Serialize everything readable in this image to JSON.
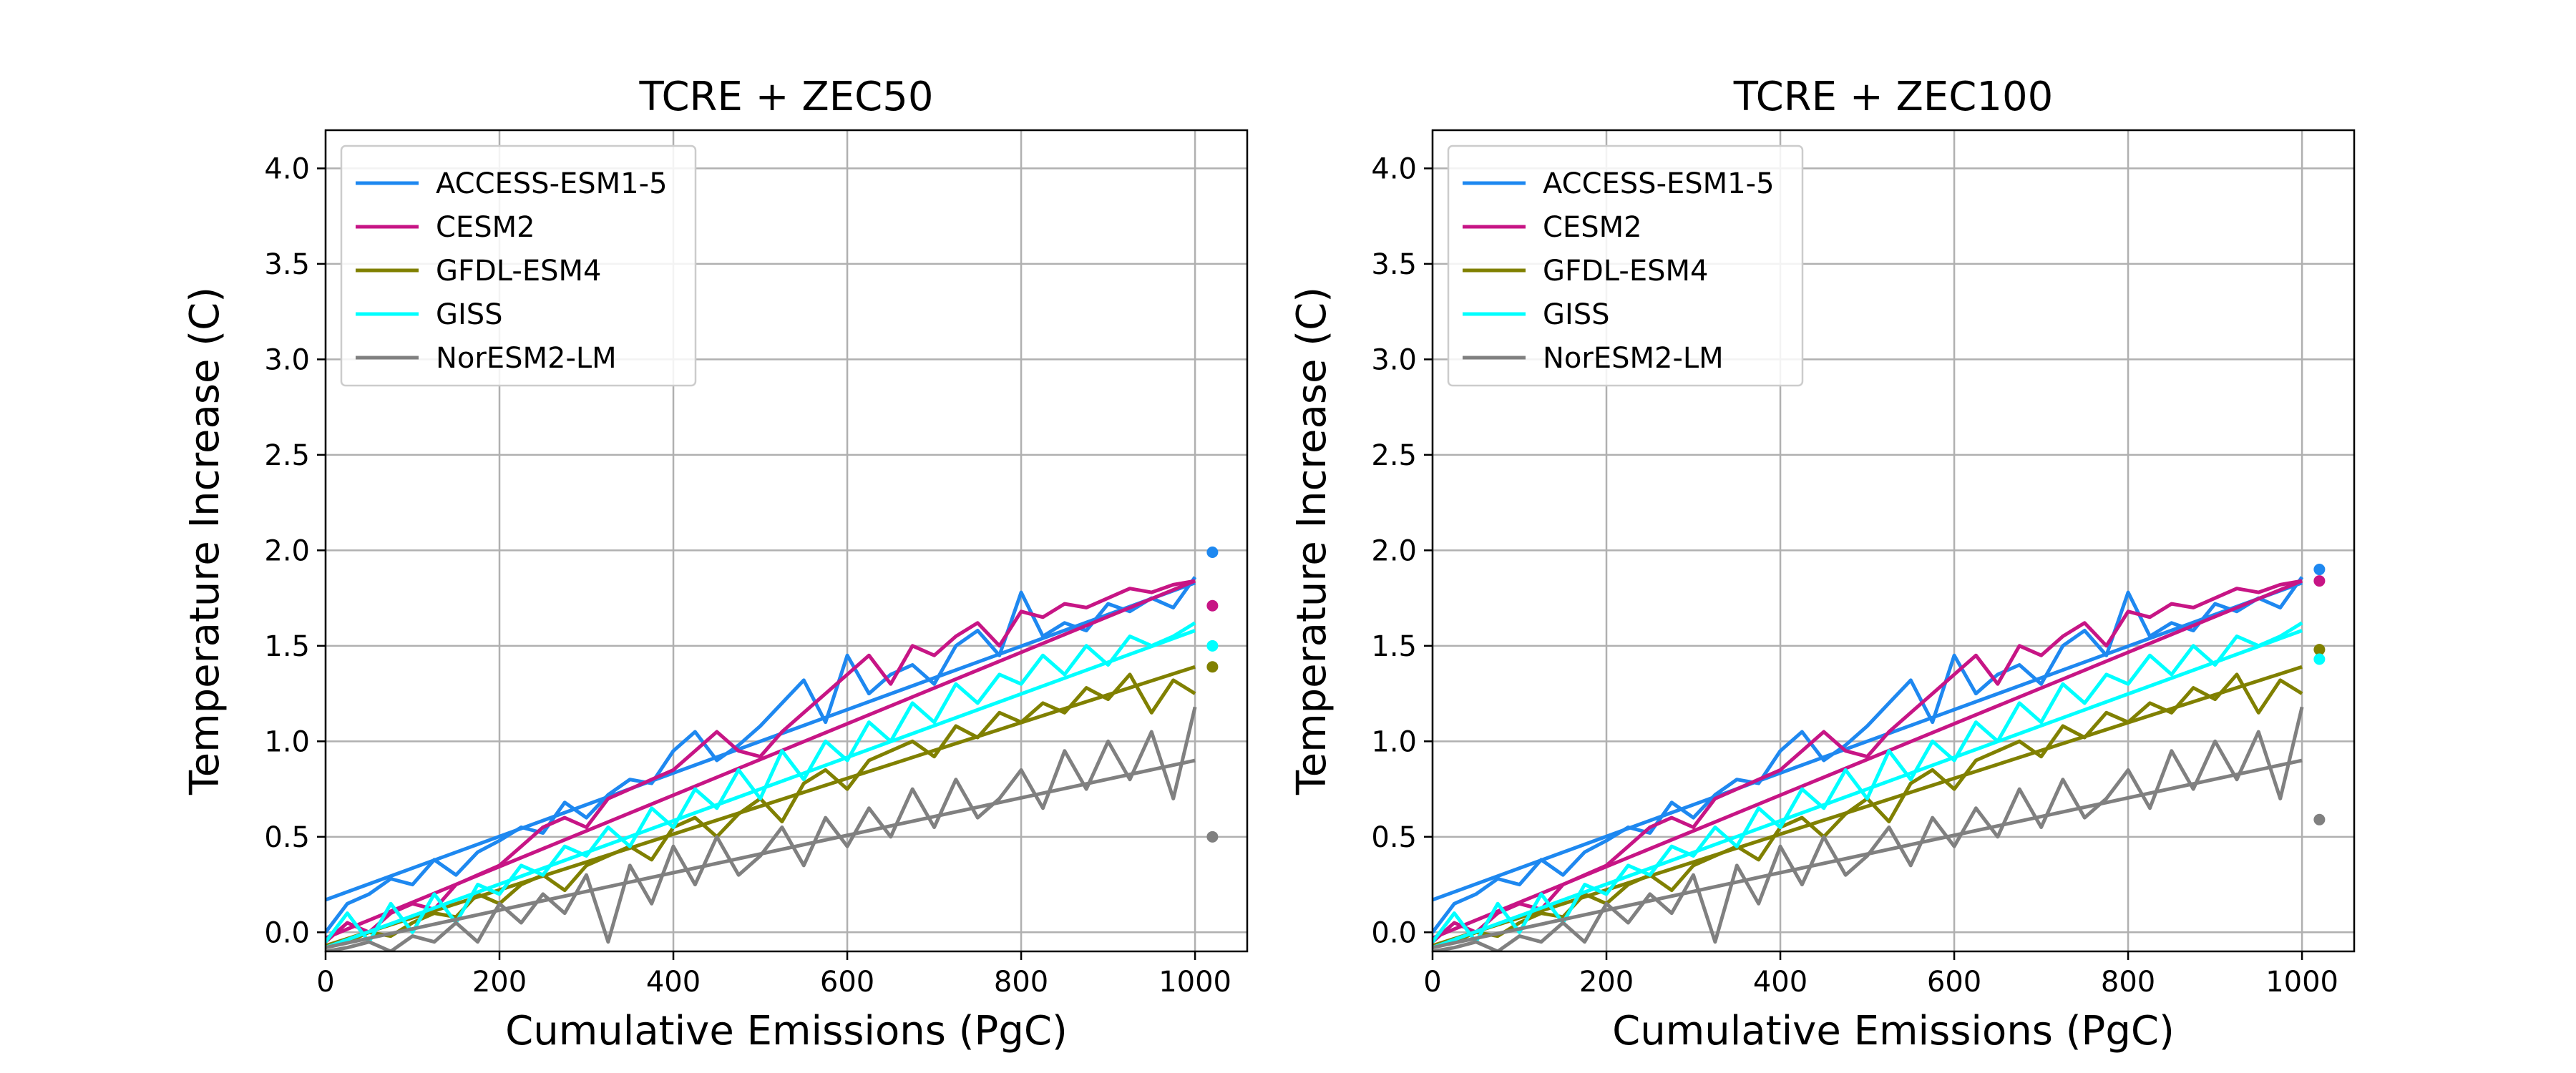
{
  "chart_data": [
    {
      "type": "line",
      "title": "TCRE + ZEC50",
      "xlabel": "Cumulative Emissions (PgC)",
      "ylabel": "Temperature Increase (C)",
      "xlim": [
        0,
        1060
      ],
      "ylim": [
        -0.1,
        4.2
      ],
      "xticks": [
        "0",
        "200",
        "400",
        "600",
        "800",
        "1000"
      ],
      "yticks": [
        "0.0",
        "0.5",
        "1.0",
        "1.5",
        "2.0",
        "2.5",
        "3.0",
        "3.5",
        "4.0"
      ],
      "grid": true,
      "legend": "top-left",
      "series": [
        {
          "name": "ACCESS-ESM1-5",
          "color": "#1e88f0",
          "fit_x": [
            0,
            1000
          ],
          "fit_y": [
            0.17,
            1.83
          ],
          "zec_x": 1020,
          "zec_y": 1.99,
          "x": [
            0,
            25,
            50,
            75,
            100,
            125,
            150,
            175,
            200,
            225,
            250,
            275,
            300,
            325,
            350,
            375,
            400,
            425,
            450,
            475,
            500,
            525,
            550,
            575,
            600,
            625,
            650,
            675,
            700,
            725,
            750,
            775,
            800,
            825,
            850,
            875,
            900,
            925,
            950,
            975,
            1000
          ],
          "y": [
            0.0,
            0.15,
            0.2,
            0.28,
            0.25,
            0.38,
            0.3,
            0.42,
            0.48,
            0.55,
            0.52,
            0.68,
            0.6,
            0.72,
            0.8,
            0.78,
            0.95,
            1.05,
            0.9,
            0.98,
            1.08,
            1.2,
            1.32,
            1.1,
            1.45,
            1.25,
            1.35,
            1.4,
            1.3,
            1.5,
            1.58,
            1.45,
            1.78,
            1.55,
            1.62,
            1.58,
            1.72,
            1.68,
            1.75,
            1.7,
            1.86
          ]
        },
        {
          "name": "CESM2",
          "color": "#c71585",
          "fit_x": [
            0,
            1000
          ],
          "fit_y": [
            -0.03,
            1.84
          ],
          "zec_x": 1020,
          "zec_y": 1.71,
          "x": [
            0,
            25,
            50,
            75,
            100,
            125,
            150,
            175,
            200,
            225,
            250,
            275,
            300,
            325,
            350,
            375,
            400,
            425,
            450,
            475,
            500,
            525,
            550,
            575,
            600,
            625,
            650,
            675,
            700,
            725,
            750,
            775,
            800,
            825,
            850,
            875,
            900,
            925,
            950,
            975,
            1000
          ],
          "y": [
            -0.05,
            0.05,
            0.0,
            0.1,
            0.15,
            0.12,
            0.25,
            0.3,
            0.35,
            0.45,
            0.55,
            0.6,
            0.55,
            0.7,
            0.75,
            0.8,
            0.85,
            0.95,
            1.05,
            0.95,
            0.92,
            1.05,
            1.15,
            1.25,
            1.35,
            1.45,
            1.3,
            1.5,
            1.45,
            1.55,
            1.62,
            1.5,
            1.68,
            1.65,
            1.72,
            1.7,
            1.75,
            1.8,
            1.78,
            1.82,
            1.84
          ]
        },
        {
          "name": "GFDL-ESM4",
          "color": "#808000",
          "fit_x": [
            0,
            1000
          ],
          "fit_y": [
            -0.07,
            1.39
          ],
          "zec_x": 1020,
          "zec_y": 1.39,
          "x": [
            0,
            25,
            50,
            75,
            100,
            125,
            150,
            175,
            200,
            225,
            250,
            275,
            300,
            325,
            350,
            375,
            400,
            425,
            450,
            475,
            500,
            525,
            550,
            575,
            600,
            625,
            650,
            675,
            700,
            725,
            750,
            775,
            800,
            825,
            850,
            875,
            900,
            925,
            950,
            975,
            1000
          ],
          "y": [
            -0.08,
            -0.05,
            0.0,
            -0.02,
            0.05,
            0.1,
            0.08,
            0.2,
            0.15,
            0.25,
            0.3,
            0.22,
            0.35,
            0.4,
            0.45,
            0.38,
            0.55,
            0.6,
            0.5,
            0.62,
            0.7,
            0.58,
            0.78,
            0.85,
            0.75,
            0.9,
            0.95,
            1.0,
            0.92,
            1.08,
            1.02,
            1.15,
            1.1,
            1.2,
            1.15,
            1.28,
            1.22,
            1.35,
            1.15,
            1.32,
            1.25
          ]
        },
        {
          "name": "GISS",
          "color": "#00ffff",
          "fit_x": [
            0,
            1000
          ],
          "fit_y": [
            -0.08,
            1.58
          ],
          "zec_x": 1020,
          "zec_y": 1.5,
          "x": [
            0,
            25,
            50,
            75,
            100,
            125,
            150,
            175,
            200,
            225,
            250,
            275,
            300,
            325,
            350,
            375,
            400,
            425,
            450,
            475,
            500,
            525,
            550,
            575,
            600,
            625,
            650,
            675,
            700,
            725,
            750,
            775,
            800,
            825,
            850,
            875,
            900,
            925,
            950,
            975,
            1000
          ],
          "y": [
            -0.05,
            0.1,
            -0.05,
            0.15,
            0.0,
            0.2,
            0.05,
            0.25,
            0.2,
            0.35,
            0.3,
            0.45,
            0.4,
            0.55,
            0.45,
            0.65,
            0.55,
            0.75,
            0.65,
            0.85,
            0.7,
            0.95,
            0.8,
            1.0,
            0.9,
            1.1,
            1.0,
            1.2,
            1.1,
            1.3,
            1.2,
            1.35,
            1.3,
            1.45,
            1.35,
            1.5,
            1.4,
            1.55,
            1.5,
            1.55,
            1.62
          ]
        },
        {
          "name": "NorESM2-LM",
          "color": "#808080",
          "fit_x": [
            0,
            1000
          ],
          "fit_y": [
            -0.08,
            0.9
          ],
          "zec_x": 1020,
          "zec_y": 0.5,
          "x": [
            0,
            25,
            50,
            75,
            100,
            125,
            150,
            175,
            200,
            225,
            250,
            275,
            300,
            325,
            350,
            375,
            400,
            425,
            450,
            475,
            500,
            525,
            550,
            575,
            600,
            625,
            650,
            675,
            700,
            725,
            750,
            775,
            800,
            825,
            850,
            875,
            900,
            925,
            950,
            975,
            1000
          ],
          "y": [
            -0.1,
            -0.08,
            -0.05,
            -0.1,
            -0.02,
            -0.05,
            0.05,
            -0.05,
            0.15,
            0.05,
            0.2,
            0.1,
            0.3,
            -0.05,
            0.35,
            0.15,
            0.45,
            0.25,
            0.5,
            0.3,
            0.4,
            0.55,
            0.35,
            0.6,
            0.45,
            0.65,
            0.5,
            0.75,
            0.55,
            0.8,
            0.6,
            0.7,
            0.85,
            0.65,
            0.95,
            0.75,
            1.0,
            0.8,
            1.05,
            0.7,
            1.18
          ]
        }
      ]
    },
    {
      "type": "line",
      "title": "TCRE + ZEC100",
      "xlabel": "Cumulative Emissions (PgC)",
      "ylabel": "Temperature Increase (C)",
      "xlim": [
        0,
        1060
      ],
      "ylim": [
        -0.1,
        4.2
      ],
      "xticks": [
        "0",
        "200",
        "400",
        "600",
        "800",
        "1000"
      ],
      "yticks": [
        "0.0",
        "0.5",
        "1.0",
        "1.5",
        "2.0",
        "2.5",
        "3.0",
        "3.5",
        "4.0"
      ],
      "grid": true,
      "legend": "top-left",
      "series": [
        {
          "name": "ACCESS-ESM1-5",
          "color": "#1e88f0",
          "fit_x": [
            0,
            1000
          ],
          "fit_y": [
            0.17,
            1.83
          ],
          "zec_x": 1020,
          "zec_y": 1.9,
          "x": [
            0,
            25,
            50,
            75,
            100,
            125,
            150,
            175,
            200,
            225,
            250,
            275,
            300,
            325,
            350,
            375,
            400,
            425,
            450,
            475,
            500,
            525,
            550,
            575,
            600,
            625,
            650,
            675,
            700,
            725,
            750,
            775,
            800,
            825,
            850,
            875,
            900,
            925,
            950,
            975,
            1000
          ],
          "y": [
            0.0,
            0.15,
            0.2,
            0.28,
            0.25,
            0.38,
            0.3,
            0.42,
            0.48,
            0.55,
            0.52,
            0.68,
            0.6,
            0.72,
            0.8,
            0.78,
            0.95,
            1.05,
            0.9,
            0.98,
            1.08,
            1.2,
            1.32,
            1.1,
            1.45,
            1.25,
            1.35,
            1.4,
            1.3,
            1.5,
            1.58,
            1.45,
            1.78,
            1.55,
            1.62,
            1.58,
            1.72,
            1.68,
            1.75,
            1.7,
            1.86
          ]
        },
        {
          "name": "CESM2",
          "color": "#c71585",
          "fit_x": [
            0,
            1000
          ],
          "fit_y": [
            -0.03,
            1.84
          ],
          "zec_x": 1020,
          "zec_y": 1.84,
          "x": [
            0,
            25,
            50,
            75,
            100,
            125,
            150,
            175,
            200,
            225,
            250,
            275,
            300,
            325,
            350,
            375,
            400,
            425,
            450,
            475,
            500,
            525,
            550,
            575,
            600,
            625,
            650,
            675,
            700,
            725,
            750,
            775,
            800,
            825,
            850,
            875,
            900,
            925,
            950,
            975,
            1000
          ],
          "y": [
            -0.05,
            0.05,
            0.0,
            0.1,
            0.15,
            0.12,
            0.25,
            0.3,
            0.35,
            0.45,
            0.55,
            0.6,
            0.55,
            0.7,
            0.75,
            0.8,
            0.85,
            0.95,
            1.05,
            0.95,
            0.92,
            1.05,
            1.15,
            1.25,
            1.35,
            1.45,
            1.3,
            1.5,
            1.45,
            1.55,
            1.62,
            1.5,
            1.68,
            1.65,
            1.72,
            1.7,
            1.75,
            1.8,
            1.78,
            1.82,
            1.84
          ]
        },
        {
          "name": "GFDL-ESM4",
          "color": "#808000",
          "fit_x": [
            0,
            1000
          ],
          "fit_y": [
            -0.07,
            1.39
          ],
          "zec_x": 1020,
          "zec_y": 1.48,
          "x": [
            0,
            25,
            50,
            75,
            100,
            125,
            150,
            175,
            200,
            225,
            250,
            275,
            300,
            325,
            350,
            375,
            400,
            425,
            450,
            475,
            500,
            525,
            550,
            575,
            600,
            625,
            650,
            675,
            700,
            725,
            750,
            775,
            800,
            825,
            850,
            875,
            900,
            925,
            950,
            975,
            1000
          ],
          "y": [
            -0.08,
            -0.05,
            0.0,
            -0.02,
            0.05,
            0.1,
            0.08,
            0.2,
            0.15,
            0.25,
            0.3,
            0.22,
            0.35,
            0.4,
            0.45,
            0.38,
            0.55,
            0.6,
            0.5,
            0.62,
            0.7,
            0.58,
            0.78,
            0.85,
            0.75,
            0.9,
            0.95,
            1.0,
            0.92,
            1.08,
            1.02,
            1.15,
            1.1,
            1.2,
            1.15,
            1.28,
            1.22,
            1.35,
            1.15,
            1.32,
            1.25
          ]
        },
        {
          "name": "GISS",
          "color": "#00ffff",
          "fit_x": [
            0,
            1000
          ],
          "fit_y": [
            -0.08,
            1.58
          ],
          "zec_x": 1020,
          "zec_y": 1.43,
          "x": [
            0,
            25,
            50,
            75,
            100,
            125,
            150,
            175,
            200,
            225,
            250,
            275,
            300,
            325,
            350,
            375,
            400,
            425,
            450,
            475,
            500,
            525,
            550,
            575,
            600,
            625,
            650,
            675,
            700,
            725,
            750,
            775,
            800,
            825,
            850,
            875,
            900,
            925,
            950,
            975,
            1000
          ],
          "y": [
            -0.05,
            0.1,
            -0.05,
            0.15,
            0.0,
            0.2,
            0.05,
            0.25,
            0.2,
            0.35,
            0.3,
            0.45,
            0.4,
            0.55,
            0.45,
            0.65,
            0.55,
            0.75,
            0.65,
            0.85,
            0.7,
            0.95,
            0.8,
            1.0,
            0.9,
            1.1,
            1.0,
            1.2,
            1.1,
            1.3,
            1.2,
            1.35,
            1.3,
            1.45,
            1.35,
            1.5,
            1.4,
            1.55,
            1.5,
            1.55,
            1.62
          ]
        },
        {
          "name": "NorESM2-LM",
          "color": "#808080",
          "fit_x": [
            0,
            1000
          ],
          "fit_y": [
            -0.08,
            0.9
          ],
          "zec_x": 1020,
          "zec_y": 0.59,
          "x": [
            0,
            25,
            50,
            75,
            100,
            125,
            150,
            175,
            200,
            225,
            250,
            275,
            300,
            325,
            350,
            375,
            400,
            425,
            450,
            475,
            500,
            525,
            550,
            575,
            600,
            625,
            650,
            675,
            700,
            725,
            750,
            775,
            800,
            825,
            850,
            875,
            900,
            925,
            950,
            975,
            1000
          ],
          "y": [
            -0.1,
            -0.08,
            -0.05,
            -0.1,
            -0.02,
            -0.05,
            0.05,
            -0.05,
            0.15,
            0.05,
            0.2,
            0.1,
            0.3,
            -0.05,
            0.35,
            0.15,
            0.45,
            0.25,
            0.5,
            0.3,
            0.4,
            0.55,
            0.35,
            0.6,
            0.45,
            0.65,
            0.5,
            0.75,
            0.55,
            0.8,
            0.6,
            0.7,
            0.85,
            0.65,
            0.95,
            0.75,
            1.0,
            0.8,
            1.05,
            0.7,
            1.18
          ]
        }
      ]
    }
  ]
}
